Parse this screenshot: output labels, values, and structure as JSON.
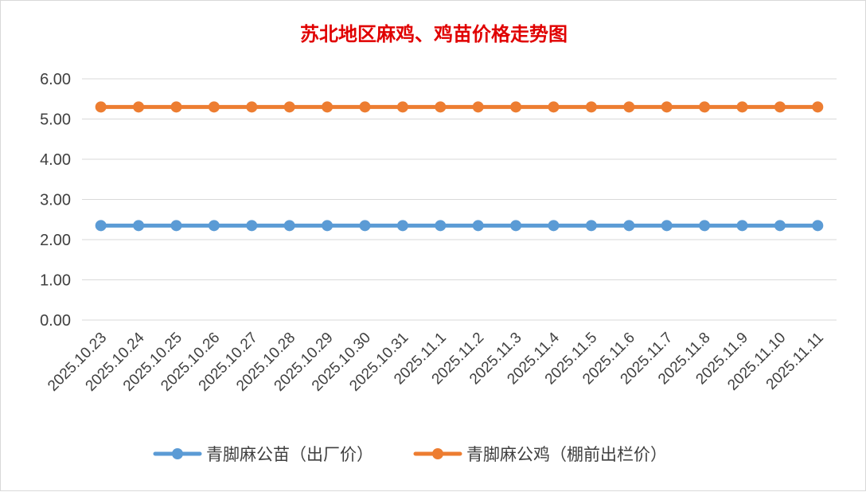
{
  "chart_data": {
    "type": "line",
    "title": "苏北地区麻鸡、鸡苗价格走势图",
    "xlabel": "",
    "ylabel": "",
    "ylim": [
      0,
      6
    ],
    "yticks": [
      "0.00",
      "1.00",
      "2.00",
      "3.00",
      "4.00",
      "5.00",
      "6.00"
    ],
    "grid": true,
    "legend_position": "bottom",
    "categories": [
      "2025.10.23",
      "2025.10.24",
      "2025.10.25",
      "2025.10.26",
      "2025.10.27",
      "2025.10.28",
      "2025.10.29",
      "2025.10.30",
      "2025.10.31",
      "2025.11.1",
      "2025.11.2",
      "2025.11.3",
      "2025.11.4",
      "2025.11.5",
      "2025.11.6",
      "2025.11.7",
      "2025.11.8",
      "2025.11.9",
      "2025.11.10",
      "2025.11.11"
    ],
    "series": [
      {
        "name": "青脚麻公苗（出厂价）",
        "color": "#5b9bd5",
        "values": [
          2.35,
          2.35,
          2.35,
          2.35,
          2.35,
          2.35,
          2.35,
          2.35,
          2.35,
          2.35,
          2.35,
          2.35,
          2.35,
          2.35,
          2.35,
          2.35,
          2.35,
          2.35,
          2.35,
          2.35
        ]
      },
      {
        "name": "青脚麻公鸡（棚前出栏价）",
        "color": "#ed7d31",
        "values": [
          5.3,
          5.3,
          5.3,
          5.3,
          5.3,
          5.3,
          5.3,
          5.3,
          5.3,
          5.3,
          5.3,
          5.3,
          5.3,
          5.3,
          5.3,
          5.3,
          5.3,
          5.3,
          5.3,
          5.3
        ]
      }
    ]
  }
}
